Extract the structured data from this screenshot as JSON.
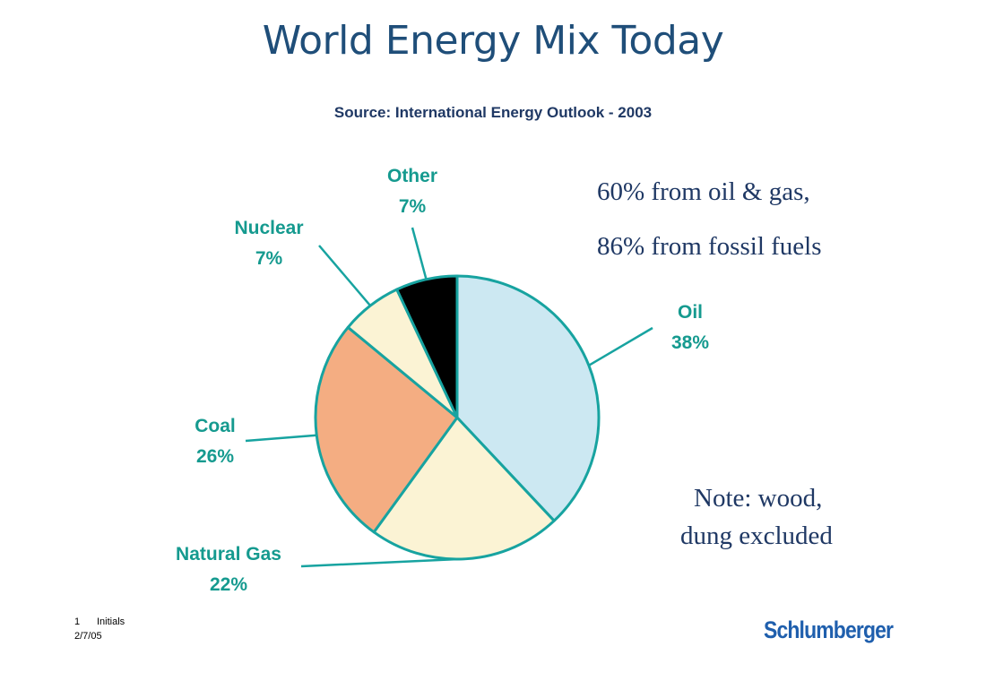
{
  "title": "World Energy Mix Today",
  "subtitle": "Source: International Energy Outlook - 2003",
  "chart_data": {
    "type": "pie",
    "slices": [
      {
        "name": "Oil",
        "value": 38,
        "label": "38%",
        "color": "#cce8f2"
      },
      {
        "name": "Natural Gas",
        "value": 22,
        "label": "22%",
        "color": "#fbf3d4"
      },
      {
        "name": "Coal",
        "value": 26,
        "label": "26%",
        "color": "#f4ad82"
      },
      {
        "name": "Nuclear",
        "value": 7,
        "label": "7%",
        "color": "#fbf3d4"
      },
      {
        "name": "Other",
        "value": 7,
        "label": "7%",
        "color": "#000000"
      }
    ],
    "outline_color": "#17a3a0",
    "label_color": "#159a8f"
  },
  "notes": {
    "line1": "60% from oil & gas,",
    "line2": "86% from fossil fuels",
    "line3": "Note: wood,",
    "line4": "dung excluded"
  },
  "footer": {
    "page_number": "1",
    "initials": "Initials",
    "date": "2/7/05",
    "logo": "Schlumberger"
  }
}
